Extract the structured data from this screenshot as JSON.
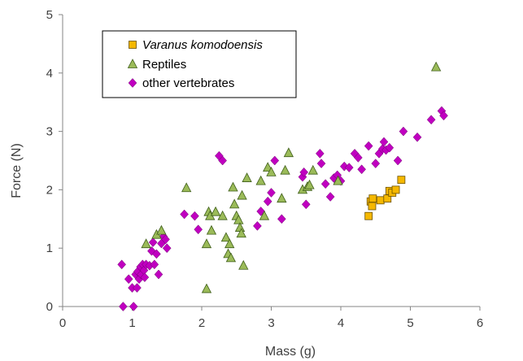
{
  "chart_data": {
    "type": "scatter",
    "xlabel": "Mass (g)",
    "ylabel": "Force (N)",
    "xlim": [
      0,
      6
    ],
    "ylim": [
      0,
      5
    ],
    "xticks": [
      "0",
      "1",
      "2",
      "3",
      "4",
      "5",
      "6"
    ],
    "yticks": [
      "0",
      "1",
      "2",
      "3",
      "4",
      "5"
    ],
    "grid": false,
    "legend_position": "top-left",
    "series": [
      {
        "name": "Varanus komodoensis",
        "italic": true,
        "marker": "square",
        "color": "#F5B800",
        "edge": "#6A5000",
        "x": [
          4.4,
          4.43,
          4.45,
          4.46,
          4.57,
          4.67,
          4.7,
          4.74,
          4.79,
          4.87
        ],
        "y": [
          1.55,
          1.8,
          1.72,
          1.85,
          1.82,
          1.85,
          1.98,
          1.95,
          2.0,
          2.17
        ]
      },
      {
        "name": "Reptiles",
        "italic": false,
        "marker": "triangle",
        "color": "#9BBB59",
        "edge": "#3F5E1A",
        "x": [
          1.2,
          1.35,
          1.42,
          1.78,
          2.07,
          2.07,
          2.1,
          2.12,
          2.14,
          2.2,
          2.3,
          2.35,
          2.38,
          2.4,
          2.42,
          2.45,
          2.47,
          2.5,
          2.53,
          2.55,
          2.57,
          2.58,
          2.6,
          2.65,
          2.85,
          2.9,
          2.95,
          3.0,
          3.15,
          3.2,
          3.25,
          3.45,
          3.52,
          3.55,
          3.6,
          3.96,
          5.37
        ],
        "y": [
          1.07,
          1.23,
          1.3,
          2.03,
          0.3,
          1.07,
          1.62,
          1.55,
          1.3,
          1.62,
          1.55,
          1.18,
          0.9,
          1.07,
          0.83,
          2.04,
          1.75,
          1.55,
          1.48,
          1.35,
          1.25,
          1.9,
          0.7,
          2.2,
          2.15,
          1.55,
          2.38,
          2.3,
          1.85,
          2.33,
          2.63,
          2.0,
          2.05,
          2.08,
          2.33,
          2.15,
          4.1
        ]
      },
      {
        "name": "other vertebrates",
        "italic": false,
        "marker": "diamond",
        "color": "#C000C0",
        "edge": "#6B006B",
        "x": [
          0.85,
          0.87,
          0.95,
          1.0,
          1.02,
          1.05,
          1.07,
          1.08,
          1.1,
          1.12,
          1.13,
          1.15,
          1.17,
          1.18,
          1.2,
          1.25,
          1.28,
          1.3,
          1.32,
          1.35,
          1.38,
          1.42,
          1.45,
          1.48,
          1.5,
          1.75,
          1.9,
          1.95,
          2.25,
          2.3,
          2.8,
          2.85,
          2.95,
          3.0,
          3.05,
          3.15,
          3.45,
          3.47,
          3.5,
          3.7,
          3.72,
          3.78,
          3.85,
          3.9,
          3.95,
          4.0,
          4.05,
          4.12,
          4.2,
          4.25,
          4.3,
          4.4,
          4.5,
          4.55,
          4.6,
          4.62,
          4.65,
          4.7,
          4.82,
          4.9,
          5.1,
          5.3,
          5.45,
          5.48
        ],
        "y": [
          0.72,
          0.0,
          0.47,
          0.32,
          0.0,
          0.55,
          0.32,
          0.6,
          0.47,
          0.68,
          0.55,
          0.72,
          0.62,
          0.5,
          0.72,
          0.7,
          0.95,
          1.1,
          0.72,
          0.9,
          0.55,
          1.08,
          1.2,
          1.15,
          1.0,
          1.58,
          1.55,
          1.32,
          2.58,
          2.5,
          1.38,
          1.63,
          1.8,
          1.95,
          2.5,
          1.5,
          2.22,
          2.3,
          1.75,
          2.62,
          2.45,
          2.1,
          1.88,
          2.2,
          2.25,
          2.15,
          2.4,
          2.38,
          2.62,
          2.55,
          2.35,
          2.75,
          2.45,
          2.62,
          2.7,
          2.82,
          2.68,
          2.72,
          2.5,
          3.0,
          2.9,
          3.2,
          3.35,
          3.27
        ]
      }
    ]
  }
}
